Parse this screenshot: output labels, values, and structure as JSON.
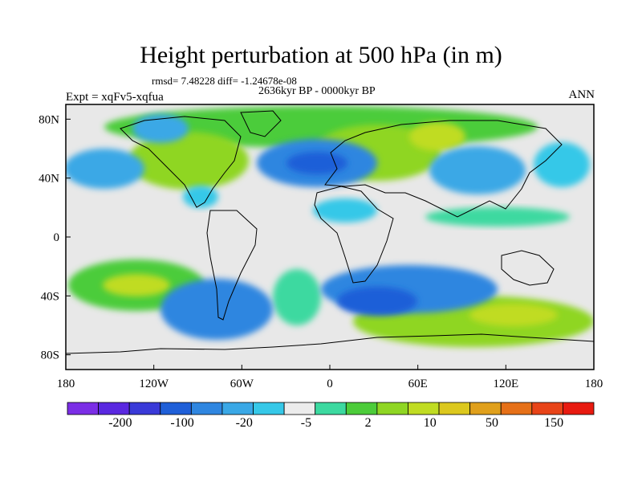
{
  "title": "Height perturbation at 500 hPa (in m)",
  "stats": "rmsd= 7.48228 diff= -1.24678e-08",
  "period": "2636kyr BP - 0000kyr BP",
  "experiment": "Expt = xqFv5-xqfua",
  "season": "ANN",
  "map": {
    "projection": "cylindrical equidistant",
    "lon_range": [
      -180,
      180
    ],
    "lat_range": [
      -90,
      90
    ],
    "x_tick_labels": [
      "180",
      "120W",
      "60W",
      "0",
      "60E",
      "120E",
      "180"
    ],
    "y_tick_labels": [
      "80N",
      "40N",
      "0",
      "40S",
      "80S"
    ],
    "background_color": "#e8e8e8"
  },
  "colorbar": {
    "colors": [
      "#7b2ee6",
      "#5a28e0",
      "#3a3ad8",
      "#1f5fd8",
      "#2f86e0",
      "#3aa8e6",
      "#36c8e8",
      "#ececec",
      "#3cd9a0",
      "#4ccc3a",
      "#8fd623",
      "#c0dc22",
      "#dcc81e",
      "#e0a01c",
      "#e67018",
      "#e84418",
      "#e81a10"
    ],
    "tick_labels": [
      "-200",
      "-100",
      "-20",
      "-5",
      "2",
      "10",
      "50",
      "150"
    ]
  }
}
